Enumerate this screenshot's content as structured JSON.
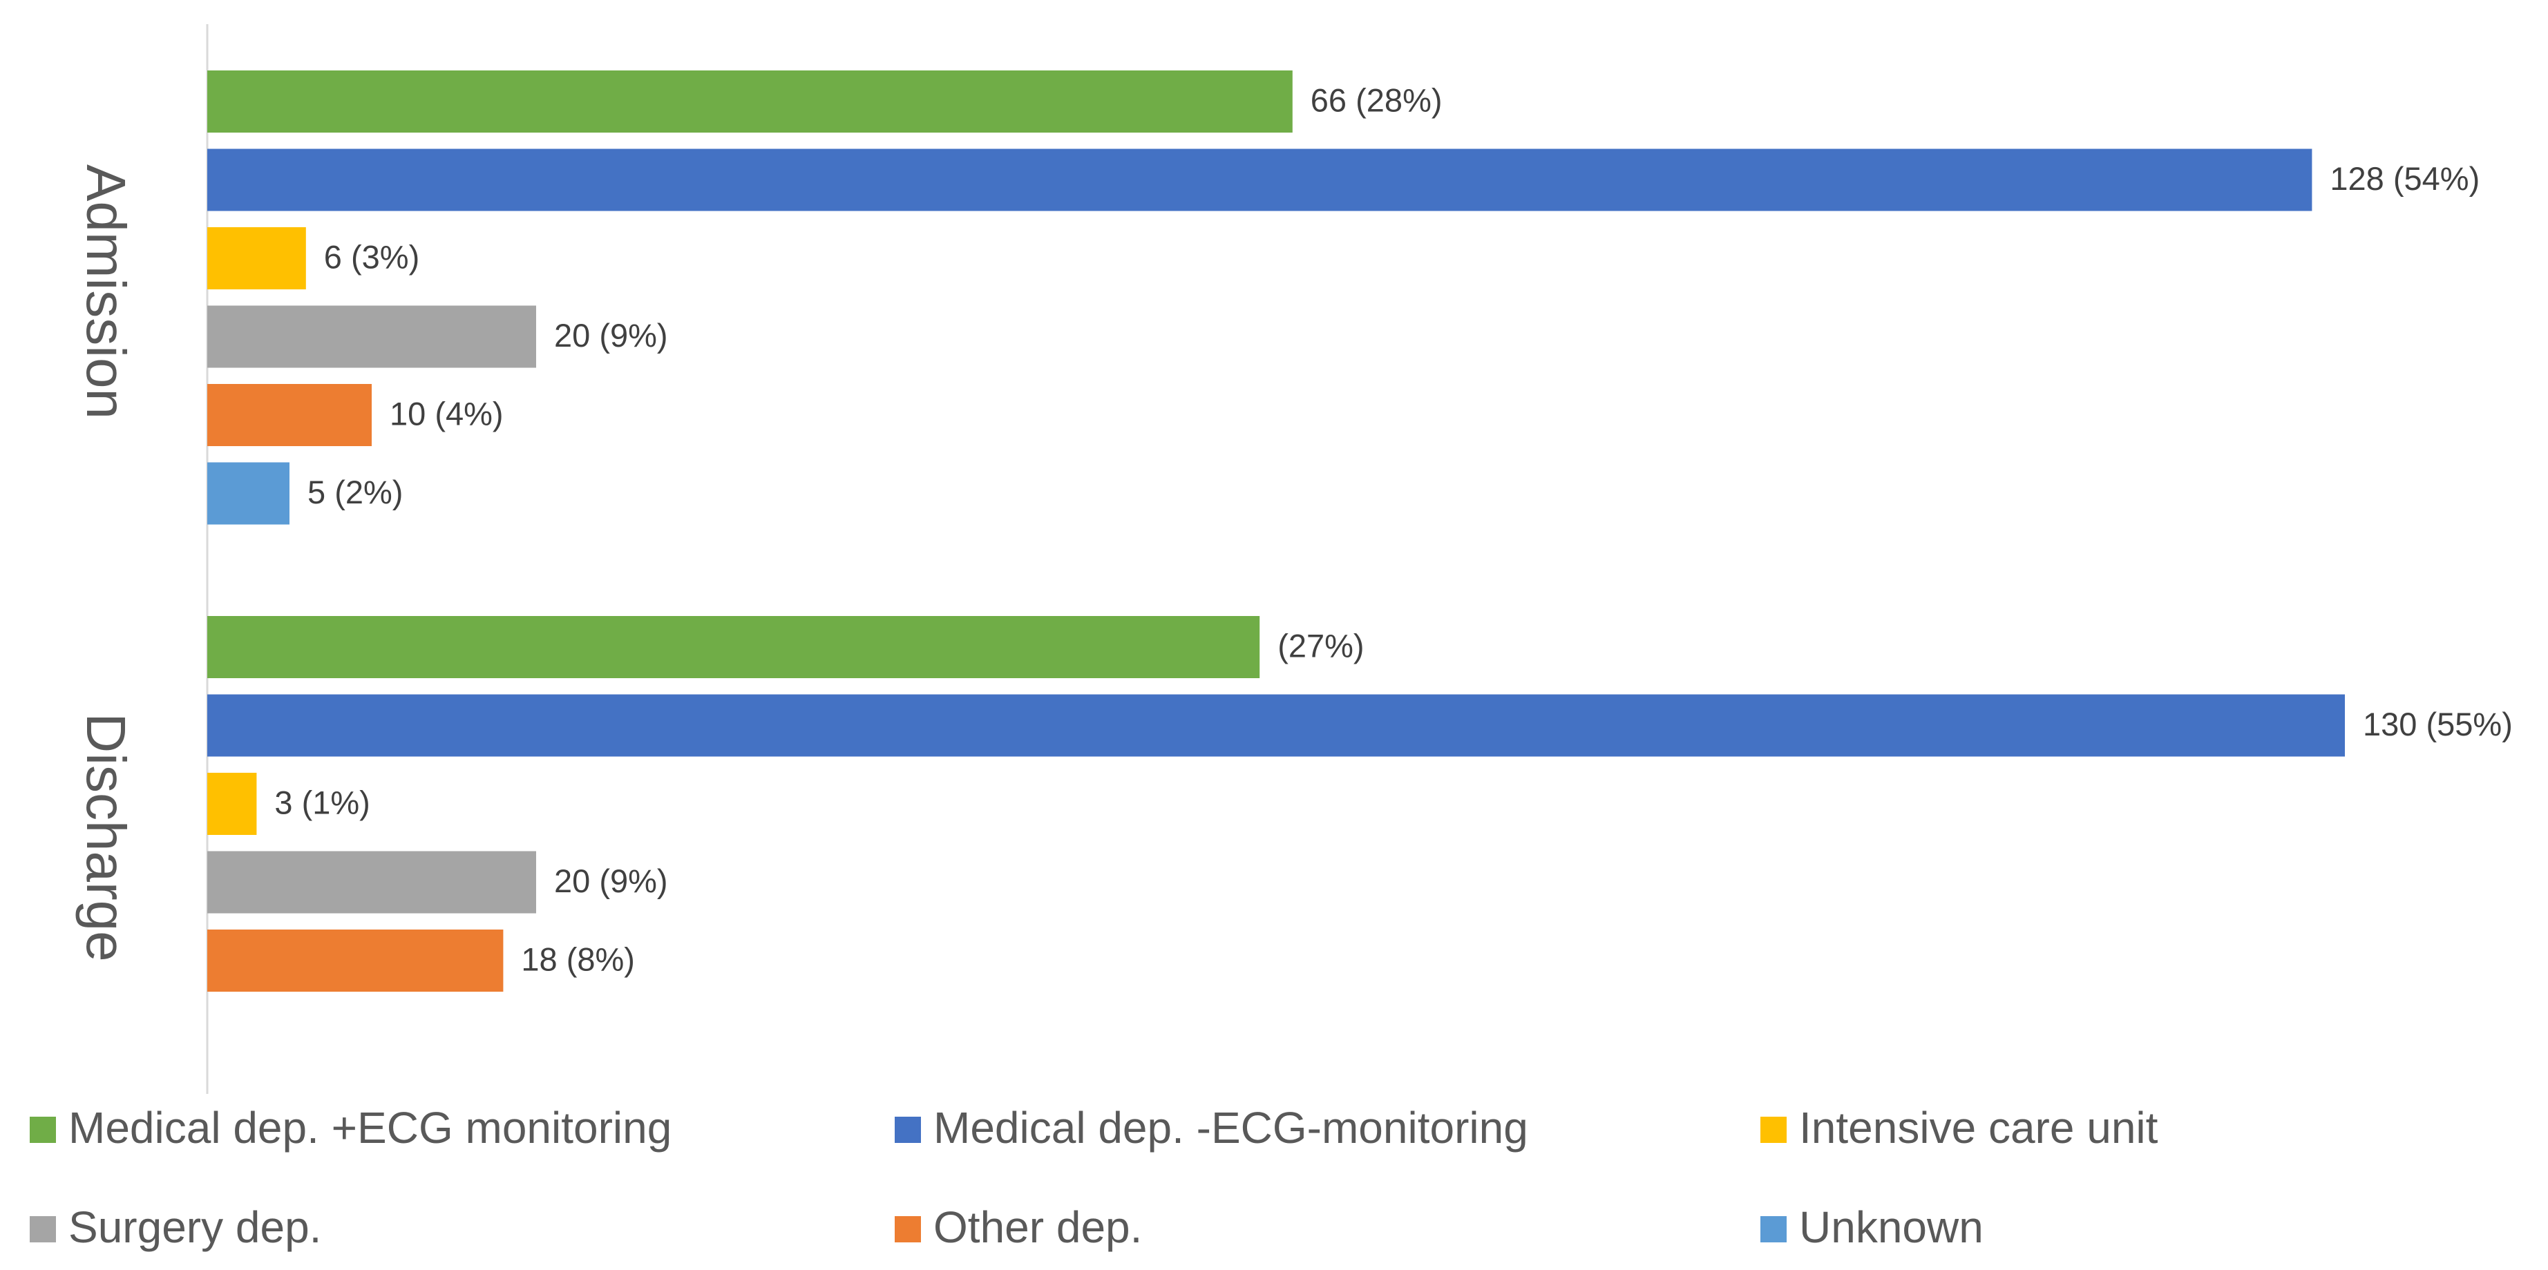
{
  "chart_data": {
    "type": "bar",
    "orientation": "horizontal",
    "categories": [
      "Admission",
      "Discharge"
    ],
    "series": [
      {
        "name": "Medical dep. +ECG monitoring",
        "color": "#70ad47",
        "values": [
          66,
          64
        ],
        "value_labels": [
          "66 (28%)",
          "(27%)"
        ]
      },
      {
        "name": "Medical dep. -ECG-monitoring",
        "color": "#4472c4",
        "values": [
          128,
          130
        ],
        "value_labels": [
          "128 (54%)",
          "130 (55%)"
        ]
      },
      {
        "name": "Intensive care unit",
        "color": "#ffc000",
        "values": [
          6,
          3
        ],
        "value_labels": [
          "6 (3%)",
          "3 (1%)"
        ]
      },
      {
        "name": "Surgery dep.",
        "color": "#a5a5a5",
        "values": [
          20,
          20
        ],
        "value_labels": [
          "20 (9%)",
          "20 (9%)"
        ]
      },
      {
        "name": "Other dep.",
        "color": "#ed7d31",
        "values": [
          10,
          18
        ],
        "value_labels": [
          "10 (4%)",
          "18 (8%)"
        ]
      },
      {
        "name": "Unknown",
        "color": "#5b9bd5",
        "values": [
          5,
          null
        ],
        "value_labels": [
          "5 (2%)",
          null
        ]
      }
    ]
  }
}
